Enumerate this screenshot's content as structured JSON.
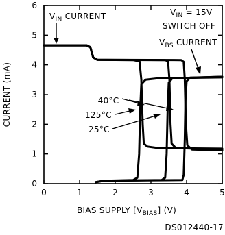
{
  "chart_data": {
    "type": "line",
    "xlabel": {
      "pre": "BIAS SUPPLY [V",
      "sub": "BIAS",
      "post": "] (V)"
    },
    "ylabel": "CURRENT (mA)",
    "xlim": [
      0,
      5
    ],
    "ylim": [
      0,
      6
    ],
    "x_ticks": [
      "0",
      "1",
      "2",
      "3",
      "4",
      "5"
    ],
    "y_ticks": [
      "0",
      "1",
      "2",
      "3",
      "4",
      "5",
      "6"
    ],
    "grid": false,
    "condition": {
      "line1_pre": "V",
      "line1_sub": "IN",
      "line1_post": " = 15V",
      "line2": "SWITCH OFF"
    },
    "annotations": {
      "vin_current": {
        "pre": "V",
        "sub": "IN",
        "post": " CURRENT"
      },
      "vbs_current": {
        "pre": "V",
        "sub": "BS",
        "post": " CURRENT"
      },
      "t_minus40": "-40°C",
      "t_125": "125°C",
      "t_25": "25°C"
    },
    "series": [
      {
        "group": "VIN current",
        "temp": "125°C",
        "points": [
          [
            0,
            4.66
          ],
          [
            1.2,
            4.66
          ],
          [
            1.3,
            4.6
          ],
          [
            1.38,
            4.25
          ],
          [
            1.5,
            4.17
          ],
          [
            2.5,
            4.16
          ],
          [
            2.68,
            4.12
          ],
          [
            2.73,
            3.5
          ],
          [
            2.77,
            2.0
          ],
          [
            2.8,
            1.35
          ],
          [
            2.9,
            1.25
          ],
          [
            3.2,
            1.2
          ],
          [
            5,
            1.18
          ]
        ]
      },
      {
        "group": "VIN current",
        "temp": "25°C",
        "points": [
          [
            0,
            4.66
          ],
          [
            1.2,
            4.66
          ],
          [
            1.3,
            4.6
          ],
          [
            1.38,
            4.25
          ],
          [
            1.5,
            4.17
          ],
          [
            3.4,
            4.16
          ],
          [
            3.48,
            4.12
          ],
          [
            3.52,
            3.5
          ],
          [
            3.55,
            2.0
          ],
          [
            3.58,
            1.35
          ],
          [
            3.7,
            1.2
          ],
          [
            5,
            1.15
          ]
        ]
      },
      {
        "group": "VIN current",
        "temp": "-40°C",
        "points": [
          [
            0,
            4.66
          ],
          [
            1.2,
            4.66
          ],
          [
            1.3,
            4.6
          ],
          [
            1.38,
            4.25
          ],
          [
            1.5,
            4.17
          ],
          [
            3.85,
            4.16
          ],
          [
            3.92,
            4.1
          ],
          [
            3.95,
            3.5
          ],
          [
            3.98,
            2.0
          ],
          [
            4.02,
            1.3
          ],
          [
            4.15,
            1.15
          ],
          [
            5,
            1.12
          ]
        ]
      },
      {
        "group": "VBS current",
        "temp": "125°C",
        "points": [
          [
            1.45,
            0.05
          ],
          [
            1.7,
            0.1
          ],
          [
            2.5,
            0.12
          ],
          [
            2.62,
            0.2
          ],
          [
            2.67,
            1.0
          ],
          [
            2.7,
            2.5
          ],
          [
            2.73,
            3.35
          ],
          [
            2.85,
            3.5
          ],
          [
            3.2,
            3.55
          ],
          [
            5,
            3.58
          ]
        ]
      },
      {
        "group": "VBS current",
        "temp": "25°C",
        "points": [
          [
            1.45,
            0.05
          ],
          [
            1.7,
            0.1
          ],
          [
            3.3,
            0.12
          ],
          [
            3.4,
            0.2
          ],
          [
            3.44,
            1.0
          ],
          [
            3.47,
            2.5
          ],
          [
            3.5,
            3.4
          ],
          [
            3.6,
            3.55
          ],
          [
            5,
            3.6
          ]
        ]
      },
      {
        "group": "VBS current",
        "temp": "-40°C",
        "points": [
          [
            1.45,
            0.05
          ],
          [
            1.7,
            0.1
          ],
          [
            3.88,
            0.12
          ],
          [
            3.92,
            0.3
          ],
          [
            3.95,
            1.5
          ],
          [
            3.97,
            2.8
          ],
          [
            4.0,
            3.45
          ],
          [
            4.1,
            3.57
          ],
          [
            5,
            3.6
          ]
        ]
      }
    ]
  },
  "figure_id": "DS012440-17"
}
